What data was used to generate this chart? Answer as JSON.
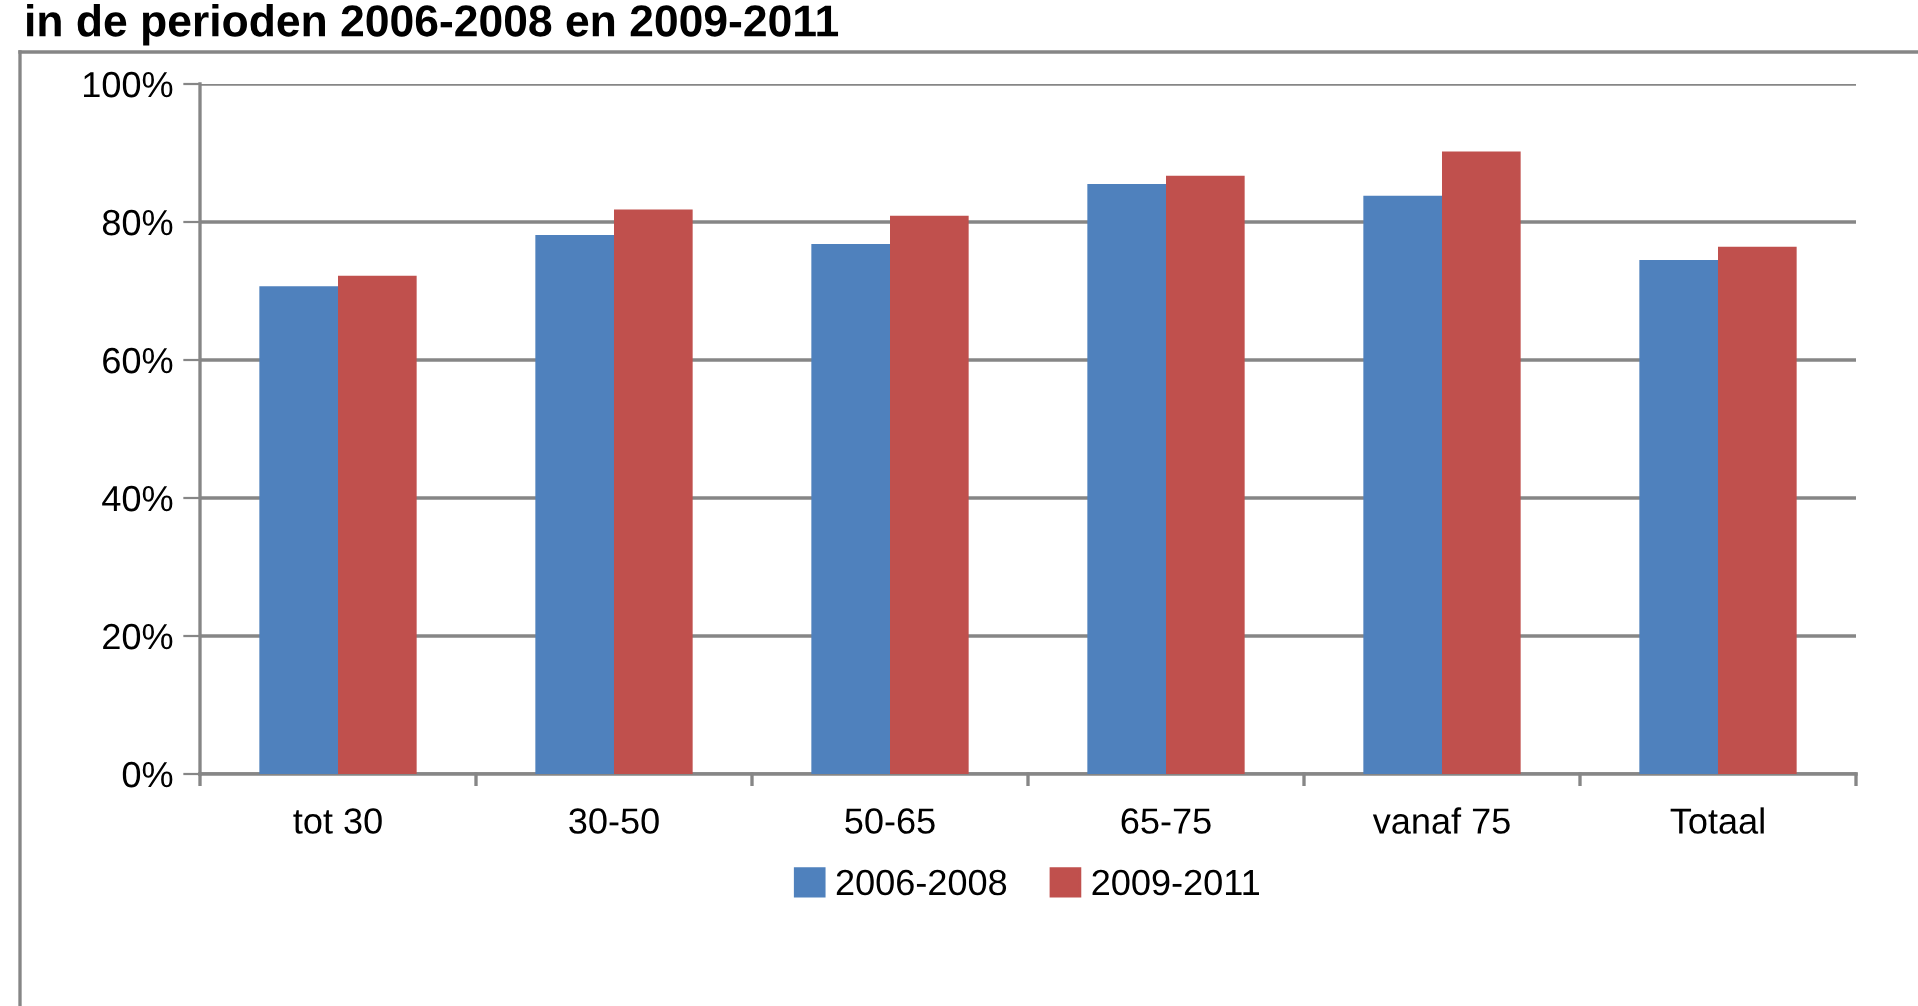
{
  "chart_data": {
    "type": "bar",
    "title": "in de perioden 2006-2008 en 2009-2011",
    "categories": [
      "tot 30",
      "30-50",
      "50-65",
      "65-75",
      "vanaf 75",
      "Totaal"
    ],
    "series": [
      {
        "name": "2006-2008",
        "color": "#4f81bd",
        "values": [
          70.7,
          78.1,
          76.8,
          85.5,
          83.8,
          74.5
        ]
      },
      {
        "name": "2009-2011",
        "color": "#c0504d",
        "values": [
          72.2,
          81.8,
          80.9,
          86.7,
          90.2,
          76.4
        ]
      }
    ],
    "ylim": [
      0,
      100
    ],
    "yticks": [
      {
        "value": 0,
        "label": "0%"
      },
      {
        "value": 20,
        "label": "20%"
      },
      {
        "value": 40,
        "label": "40%"
      },
      {
        "value": 60,
        "label": "60%"
      },
      {
        "value": 80,
        "label": "80%"
      },
      {
        "value": 100,
        "label": "100%"
      }
    ],
    "grid": "y",
    "legend": "bottom"
  }
}
